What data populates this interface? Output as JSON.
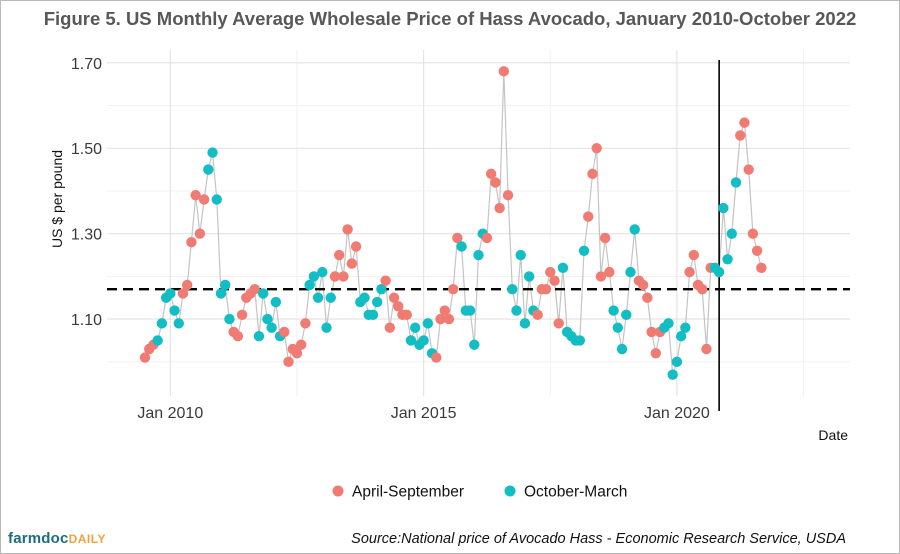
{
  "title": "Figure 5. US Monthly Average Wholesale Price of Hass Avocado, January 2010-October 2022",
  "source": "Source:National price of Avocado Hass - Economic Research Service, USDA",
  "brand": {
    "main": "farmdoc",
    "sub": "DAILY"
  },
  "colors": {
    "april_september": "#f07b72",
    "october_march": "#13bdc4",
    "line": "#c4c4c4",
    "grid": "#e2e2e2",
    "reference": "#000000"
  },
  "chart_data": {
    "type": "scatter",
    "title": "Figure 5. US Monthly Average Wholesale Price of Hass Avocado, January 2010-October 2022",
    "xlabel": "Date",
    "ylabel": "US $ per pound",
    "x_ticks": [
      "Jan 2010",
      "Jan 2015",
      "Jan 2020"
    ],
    "y_ticks": [
      "1.10",
      "1.30",
      "1.50",
      "1.70"
    ],
    "ylim": [
      0.92,
      1.73
    ],
    "xlim": [
      "2008-10",
      "2023-06"
    ],
    "grid": true,
    "legend_position": "bottom",
    "start_month": "2009-07",
    "series": [
      {
        "name": "April-September",
        "color": "#f07b72"
      },
      {
        "name": "October-March",
        "color": "#13bdc4"
      }
    ],
    "values": [
      1.01,
      1.03,
      1.04,
      1.05,
      1.09,
      1.15,
      1.16,
      1.12,
      1.09,
      1.16,
      1.18,
      1.28,
      1.39,
      1.3,
      1.38,
      1.45,
      1.49,
      1.38,
      1.16,
      1.18,
      1.1,
      1.07,
      1.06,
      1.11,
      1.15,
      1.16,
      1.17,
      1.06,
      1.16,
      1.1,
      1.08,
      1.14,
      1.06,
      1.07,
      1.0,
      1.03,
      1.02,
      1.04,
      1.09,
      1.18,
      1.2,
      1.15,
      1.21,
      1.08,
      1.15,
      1.2,
      1.25,
      1.2,
      1.31,
      1.23,
      1.27,
      1.14,
      1.15,
      1.11,
      1.11,
      1.14,
      1.17,
      1.19,
      1.08,
      1.15,
      1.13,
      1.11,
      1.11,
      1.05,
      1.08,
      1.04,
      1.05,
      1.09,
      1.02,
      1.01,
      1.1,
      1.12,
      1.1,
      1.17,
      1.29,
      1.27,
      1.12,
      1.12,
      1.04,
      1.25,
      1.3,
      1.29,
      1.44,
      1.42,
      1.36,
      1.68,
      1.39,
      1.17,
      1.12,
      1.25,
      1.09,
      1.2,
      1.12,
      1.11,
      1.17,
      1.17,
      1.21,
      1.19,
      1.09,
      1.22,
      1.07,
      1.06,
      1.05,
      1.05,
      1.26,
      1.34,
      1.44,
      1.5,
      1.2,
      1.29,
      1.21,
      1.12,
      1.08,
      1.03,
      1.11,
      1.21,
      1.31,
      1.19,
      1.18,
      1.15,
      1.07,
      1.02,
      1.07,
      1.08,
      1.09,
      0.97,
      1.0,
      1.06,
      1.08,
      1.21,
      1.25,
      1.18,
      1.17,
      1.03,
      1.22,
      1.22,
      1.21,
      1.36,
      1.24,
      1.3,
      1.42,
      1.53,
      1.56,
      1.45,
      1.3,
      1.26,
      1.22
    ],
    "reference_lines": [
      {
        "orientation": "horizontal",
        "value": 1.17,
        "style": "dashed"
      },
      {
        "orientation": "vertical",
        "value": "2020-11",
        "style": "solid"
      }
    ]
  }
}
